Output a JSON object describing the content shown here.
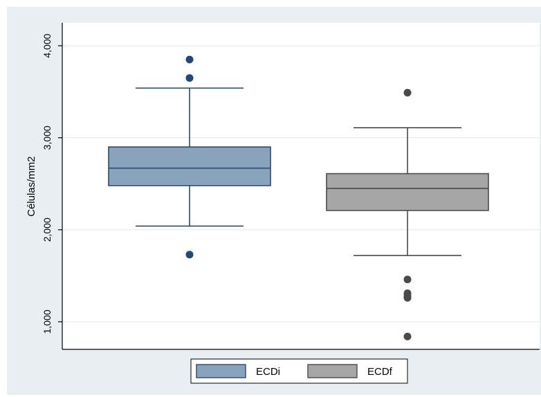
{
  "chart_data": {
    "type": "box",
    "ylabel": "Células/mm2",
    "ylim": [
      700,
      4250
    ],
    "y_ticks": [
      1000,
      2000,
      3000,
      4000
    ],
    "y_tick_labels": [
      "1,000",
      "2,000",
      "3,000",
      "4,000"
    ],
    "grid": true,
    "legend_position": "bottom",
    "series": [
      {
        "name": "ECDi",
        "color": "#8aa3bc",
        "stroke": "#2b4a6f",
        "outlier_color": "#1f4a78",
        "whisker_low": 2040,
        "q1": 2480,
        "median": 2670,
        "q3": 2900,
        "whisker_high": 3540,
        "outliers": [
          3850,
          3650,
          1730
        ]
      },
      {
        "name": "ECDf",
        "color": "#a6a6a6",
        "stroke": "#4a4a4a",
        "outlier_color": "#4a4a4a",
        "whisker_low": 1720,
        "q1": 2210,
        "median": 2450,
        "q3": 2610,
        "whisker_high": 3110,
        "outliers": [
          3490,
          1460,
          1310,
          1280,
          1260,
          840
        ]
      }
    ]
  }
}
